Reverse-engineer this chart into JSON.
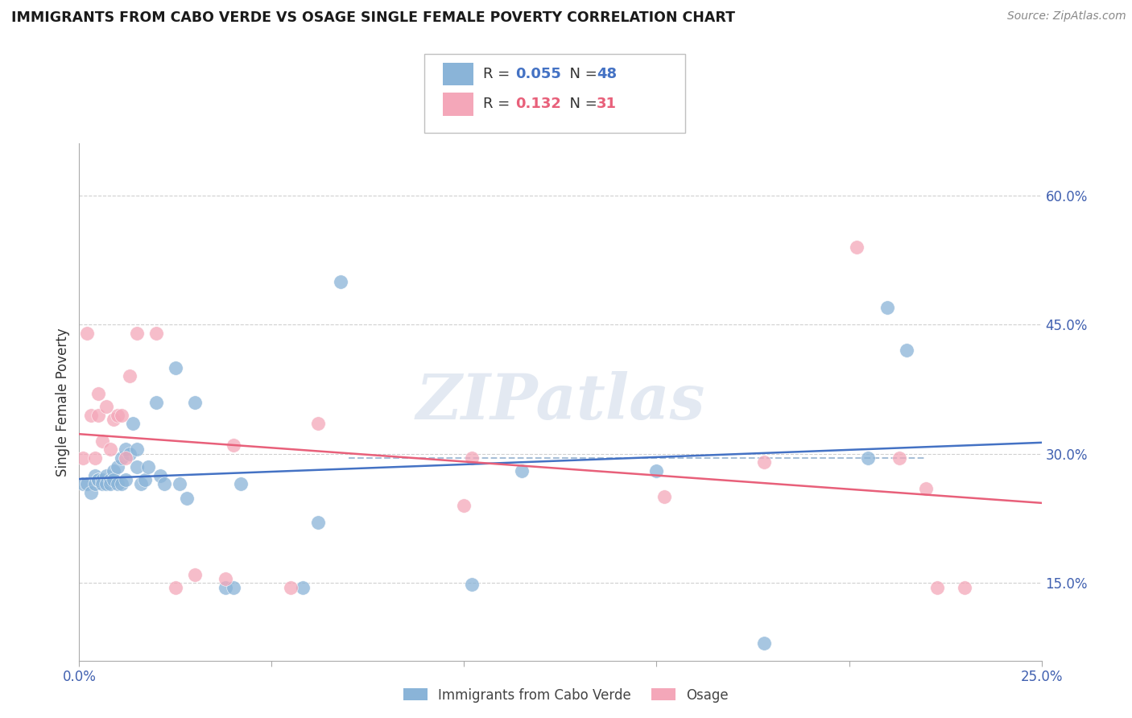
{
  "title": "IMMIGRANTS FROM CABO VERDE VS OSAGE SINGLE FEMALE POVERTY CORRELATION CHART",
  "source": "Source: ZipAtlas.com",
  "ylabel": "Single Female Poverty",
  "y_ticks_right": [
    "60.0%",
    "45.0%",
    "30.0%",
    "15.0%"
  ],
  "y_tick_vals": [
    0.6,
    0.45,
    0.3,
    0.15
  ],
  "xlim": [
    0.0,
    0.25
  ],
  "ylim": [
    0.06,
    0.66
  ],
  "blue_color": "#8ab4d8",
  "pink_color": "#f4a7b9",
  "blue_line_color": "#4472c4",
  "pink_line_color": "#e8607a",
  "dashed_line_color": "#a8c0d8",
  "watermark": "ZIPatlas",
  "cabo_verde_x": [
    0.001,
    0.002,
    0.003,
    0.004,
    0.004,
    0.005,
    0.005,
    0.006,
    0.006,
    0.007,
    0.007,
    0.008,
    0.008,
    0.009,
    0.009,
    0.01,
    0.01,
    0.011,
    0.011,
    0.012,
    0.012,
    0.013,
    0.014,
    0.015,
    0.015,
    0.016,
    0.017,
    0.018,
    0.02,
    0.021,
    0.022,
    0.025,
    0.026,
    0.028,
    0.03,
    0.038,
    0.04,
    0.042,
    0.058,
    0.062,
    0.068,
    0.102,
    0.115,
    0.15,
    0.178,
    0.205,
    0.21,
    0.215
  ],
  "cabo_verde_y": [
    0.265,
    0.265,
    0.255,
    0.275,
    0.265,
    0.27,
    0.27,
    0.27,
    0.265,
    0.275,
    0.265,
    0.27,
    0.265,
    0.28,
    0.27,
    0.285,
    0.265,
    0.295,
    0.265,
    0.305,
    0.27,
    0.3,
    0.335,
    0.305,
    0.285,
    0.265,
    0.27,
    0.285,
    0.36,
    0.275,
    0.265,
    0.4,
    0.265,
    0.248,
    0.36,
    0.145,
    0.145,
    0.265,
    0.145,
    0.22,
    0.5,
    0.148,
    0.28,
    0.28,
    0.08,
    0.295,
    0.47,
    0.42
  ],
  "osage_x": [
    0.001,
    0.002,
    0.003,
    0.004,
    0.005,
    0.005,
    0.006,
    0.007,
    0.008,
    0.009,
    0.01,
    0.011,
    0.012,
    0.013,
    0.015,
    0.02,
    0.025,
    0.03,
    0.038,
    0.04,
    0.055,
    0.062,
    0.1,
    0.102,
    0.152,
    0.178,
    0.202,
    0.213,
    0.22,
    0.223,
    0.23
  ],
  "osage_y": [
    0.295,
    0.44,
    0.345,
    0.295,
    0.37,
    0.345,
    0.315,
    0.355,
    0.305,
    0.34,
    0.345,
    0.345,
    0.295,
    0.39,
    0.44,
    0.44,
    0.145,
    0.16,
    0.155,
    0.31,
    0.145,
    0.335,
    0.24,
    0.295,
    0.25,
    0.29,
    0.54,
    0.295,
    0.26,
    0.145,
    0.145
  ],
  "cabo_r": 0.055,
  "cabo_n": 48,
  "osage_r": 0.132,
  "osage_n": 31
}
